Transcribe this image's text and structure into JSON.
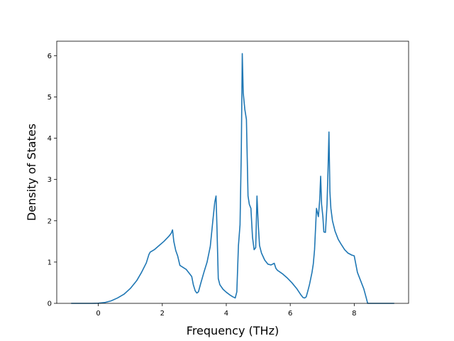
{
  "chart_data": {
    "type": "line",
    "title": "",
    "xlabel": "Frequency (THz)",
    "ylabel": "Density of States",
    "xlim": [
      -1.3,
      9.7
    ],
    "ylim": [
      0,
      6.35
    ],
    "xticks": [
      0,
      2,
      4,
      6,
      8
    ],
    "xtick_labels": [
      "0",
      "2",
      "4",
      "6",
      "8"
    ],
    "yticks": [
      0,
      1,
      2,
      3,
      4,
      5,
      6
    ],
    "ytick_labels": [
      "0",
      "1",
      "2",
      "3",
      "4",
      "5",
      "6"
    ],
    "grid": false,
    "legend": "none",
    "line_color": "#1f77b4",
    "series": [
      {
        "x": [
          -0.85,
          -0.5,
          -0.2,
          0.0,
          0.2,
          0.4,
          0.6,
          0.8,
          1.0,
          1.2,
          1.35,
          1.5,
          1.58,
          1.62,
          1.75,
          1.9,
          2.05,
          2.2,
          2.28,
          2.32,
          2.36,
          2.42,
          2.48,
          2.55,
          2.65,
          2.75,
          2.85,
          2.92,
          2.97,
          3.03,
          3.08,
          3.13,
          3.2,
          3.3,
          3.4,
          3.5,
          3.58,
          3.64,
          3.68,
          3.71,
          3.75,
          3.8,
          3.9,
          4.0,
          4.1,
          4.2,
          4.28,
          4.33,
          4.38,
          4.43,
          4.47,
          4.5,
          4.53,
          4.58,
          4.63,
          4.68,
          4.72,
          4.77,
          4.82,
          4.87,
          4.92,
          4.96,
          5.0,
          5.04,
          5.1,
          5.2,
          5.3,
          5.4,
          5.5,
          5.55,
          5.6,
          5.75,
          5.9,
          6.05,
          6.2,
          6.32,
          6.4,
          6.45,
          6.5,
          6.55,
          6.6,
          6.68,
          6.72,
          6.76,
          6.82,
          6.88,
          6.92,
          6.95,
          6.98,
          7.02,
          7.05,
          7.1,
          7.15,
          7.18,
          7.21,
          7.24,
          7.27,
          7.32,
          7.4,
          7.5,
          7.6,
          7.7,
          7.8,
          7.92,
          8.0,
          8.1,
          8.2,
          8.3,
          8.37,
          8.42,
          8.6,
          9.0,
          9.25
        ],
        "y": [
          0,
          0,
          0,
          0.003,
          0.02,
          0.06,
          0.13,
          0.22,
          0.36,
          0.55,
          0.75,
          0.98,
          1.18,
          1.24,
          1.3,
          1.4,
          1.5,
          1.62,
          1.7,
          1.78,
          1.5,
          1.28,
          1.15,
          0.92,
          0.87,
          0.82,
          0.72,
          0.65,
          0.45,
          0.3,
          0.25,
          0.28,
          0.48,
          0.75,
          1.0,
          1.38,
          2.0,
          2.45,
          2.6,
          1.8,
          0.6,
          0.45,
          0.34,
          0.27,
          0.21,
          0.16,
          0.13,
          0.28,
          1.4,
          1.9,
          3.7,
          6.05,
          5.1,
          4.7,
          4.45,
          2.6,
          2.4,
          2.3,
          1.6,
          1.3,
          1.35,
          2.6,
          1.9,
          1.4,
          1.22,
          1.05,
          0.95,
          0.93,
          0.97,
          0.85,
          0.8,
          0.72,
          0.62,
          0.5,
          0.36,
          0.22,
          0.14,
          0.13,
          0.16,
          0.3,
          0.45,
          0.75,
          0.95,
          1.3,
          2.3,
          2.1,
          2.5,
          3.08,
          2.4,
          2.1,
          1.73,
          1.72,
          2.4,
          3.2,
          4.15,
          2.7,
          2.3,
          2.0,
          1.75,
          1.55,
          1.42,
          1.3,
          1.22,
          1.17,
          1.15,
          0.75,
          0.55,
          0.35,
          0.15,
          0,
          0,
          0,
          0
        ]
      }
    ]
  }
}
